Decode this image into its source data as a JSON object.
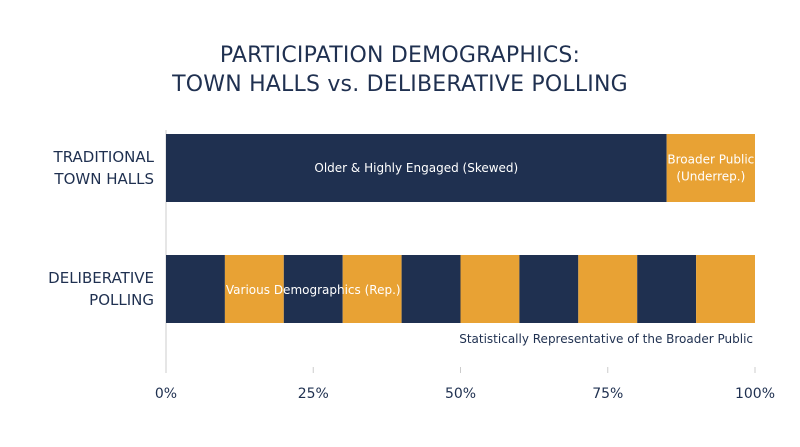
{
  "colors": {
    "navy": "#1f3050",
    "orange": "#e8a234",
    "text": "#1f3050",
    "axis": "#cccccc"
  },
  "chart_data": {
    "type": "bar",
    "orientation": "horizontal",
    "stacked": true,
    "title": [
      "PARTICIPATION DEMOGRAPHICS:",
      "TOWN HALLS vs. DELIBERATIVE POLLING"
    ],
    "categories": [
      {
        "label": [
          "TRADITIONAL",
          "TOWN HALLS"
        ]
      },
      {
        "label": [
          "DELIBERATIVE",
          "POLLING"
        ]
      }
    ],
    "xlim": [
      0,
      100
    ],
    "xticks": [
      0,
      25,
      50,
      75,
      100
    ],
    "xtick_labels": [
      "0%",
      "25%",
      "50%",
      "75%",
      "100%"
    ],
    "grid": false,
    "bars": [
      {
        "category_index": 0,
        "segments": [
          {
            "start": 0,
            "end": 85,
            "color": "navy",
            "label": "Older & Highly Engaged (Skewed)"
          },
          {
            "start": 85,
            "end": 100,
            "color": "orange",
            "label": "Broader Public\n(Underrep.)"
          }
        ]
      },
      {
        "category_index": 1,
        "segments": [
          {
            "start": 0,
            "end": 10,
            "color": "navy",
            "label": ""
          },
          {
            "start": 10,
            "end": 20,
            "color": "orange",
            "label": ""
          },
          {
            "start": 20,
            "end": 30,
            "color": "navy",
            "label": ""
          },
          {
            "start": 30,
            "end": 40,
            "color": "orange",
            "label": ""
          },
          {
            "start": 40,
            "end": 50,
            "color": "navy",
            "label": ""
          },
          {
            "start": 50,
            "end": 60,
            "color": "orange",
            "label": ""
          },
          {
            "start": 60,
            "end": 70,
            "color": "navy",
            "label": ""
          },
          {
            "start": 70,
            "end": 80,
            "color": "orange",
            "label": ""
          },
          {
            "start": 80,
            "end": 90,
            "color": "navy",
            "label": ""
          },
          {
            "start": 90,
            "end": 100,
            "color": "orange",
            "label": ""
          }
        ],
        "overlay_label": {
          "text": "Various Demographics (Rep.)",
          "x": 25
        }
      }
    ],
    "annotation": "Statistically Representative of the Broader Public"
  }
}
